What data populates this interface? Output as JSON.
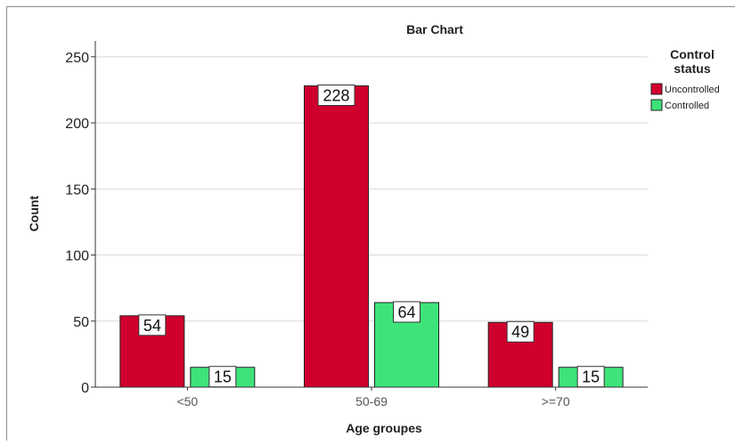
{
  "chart_data": {
    "type": "bar",
    "title": "Bar Chart",
    "xlabel": "Age groupes",
    "ylabel": "Count",
    "categories": [
      "<50",
      "50-69",
      ">=70"
    ],
    "series": [
      {
        "name": "Uncontrolled",
        "values": [
          54,
          228,
          49
        ],
        "color": "#d0002e"
      },
      {
        "name": "Controlled",
        "values": [
          15,
          64,
          15
        ],
        "color": "#3ee47a"
      }
    ],
    "ylim": [
      0,
      262
    ],
    "yticks": [
      0,
      50,
      100,
      150,
      200,
      250
    ],
    "grid": true,
    "legend": {
      "title": "Control status",
      "position": "right"
    }
  }
}
